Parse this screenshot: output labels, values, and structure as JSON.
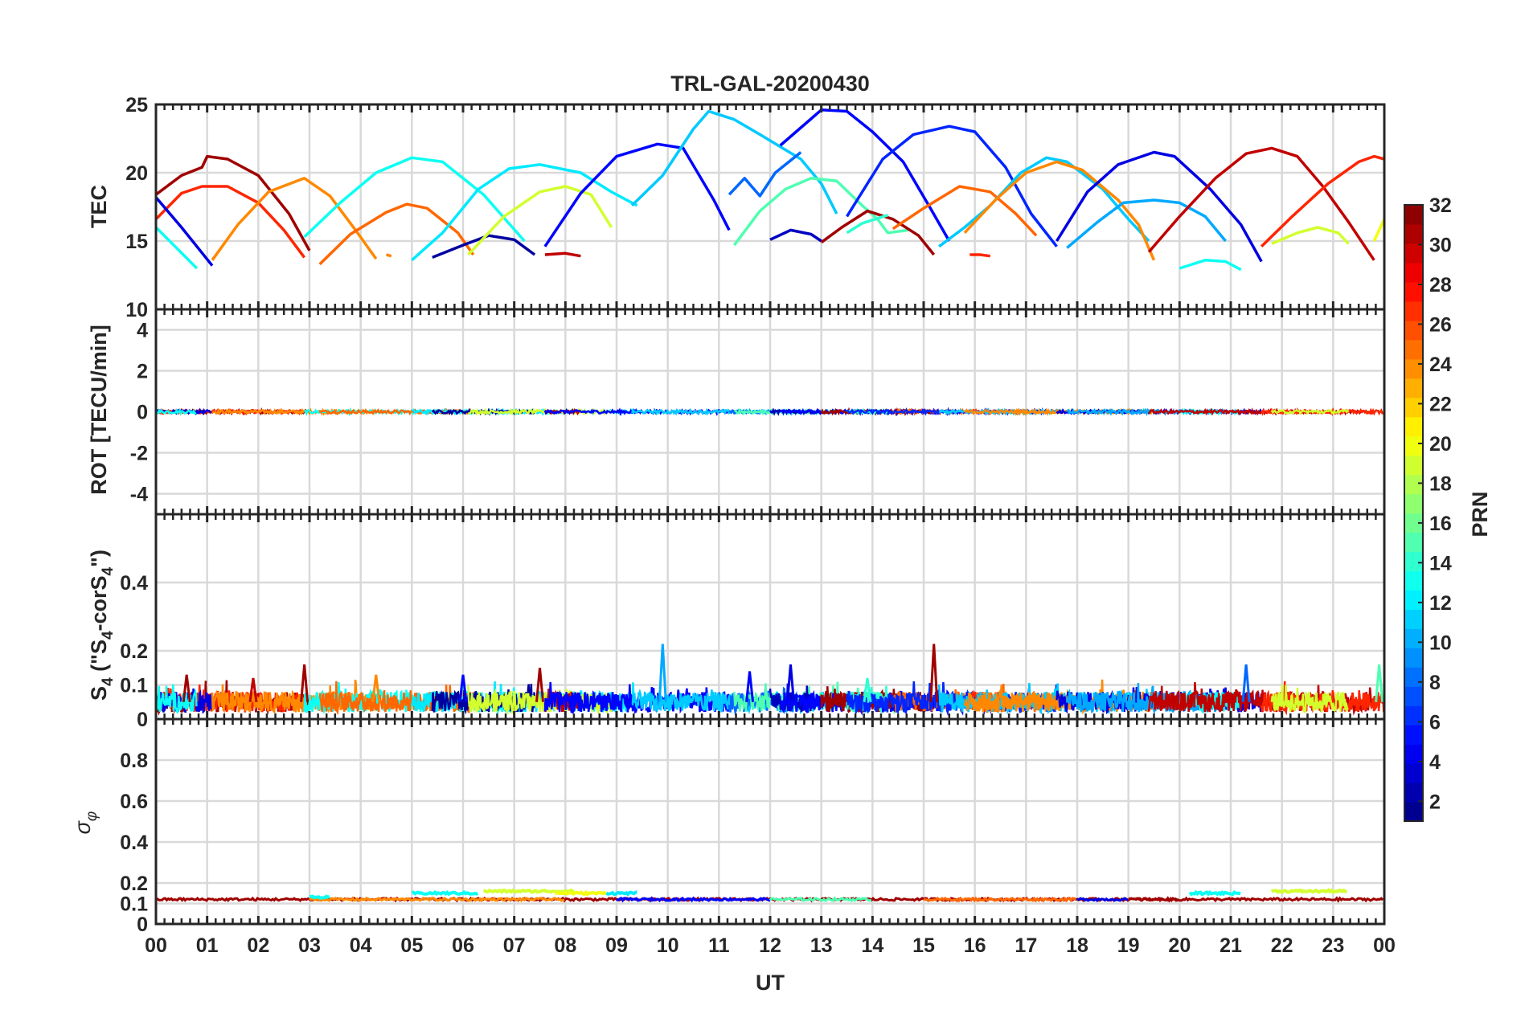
{
  "title": "TRL-GAL-20200430",
  "xlabel": "UT",
  "x_ticks": [
    "00",
    "01",
    "02",
    "03",
    "04",
    "05",
    "06",
    "07",
    "08",
    "09",
    "10",
    "11",
    "12",
    "13",
    "14",
    "15",
    "16",
    "17",
    "18",
    "19",
    "20",
    "21",
    "22",
    "23",
    "00"
  ],
  "colorbar": {
    "label": "PRN",
    "ticks": [
      "2",
      "4",
      "6",
      "8",
      "10",
      "12",
      "14",
      "16",
      "18",
      "20",
      "22",
      "24",
      "26",
      "28",
      "30",
      "32"
    ],
    "range": [
      1,
      32
    ],
    "colormap": "jet"
  },
  "chart_data": [
    {
      "type": "line",
      "name": "TEC panel",
      "ylabel": "TEC",
      "ylim": [
        10,
        25
      ],
      "y_ticks": [
        "10",
        "15",
        "20",
        "25"
      ],
      "x_range_hours": [
        0,
        24
      ],
      "series": [
        {
          "prn": 31,
          "points": [
            [
              0,
              18.4
            ],
            [
              0.5,
              19.8
            ],
            [
              0.9,
              20.4
            ],
            [
              1.0,
              21.2
            ],
            [
              1.4,
              21.0
            ],
            [
              2.0,
              19.8
            ],
            [
              2.6,
              17.0
            ],
            [
              3.0,
              14.3
            ]
          ]
        },
        {
          "prn": 27,
          "points": [
            [
              0,
              16.6
            ],
            [
              0.5,
              18.5
            ],
            [
              0.9,
              19.0
            ],
            [
              1.4,
              19.0
            ],
            [
              2.0,
              17.8
            ],
            [
              2.5,
              15.8
            ],
            [
              2.9,
              13.8
            ]
          ]
        },
        {
          "prn": 4,
          "points": [
            [
              0,
              18.2
            ],
            [
              0.5,
              16.0
            ],
            [
              1.1,
              13.2
            ]
          ]
        },
        {
          "prn": 13,
          "points": [
            [
              0,
              16.0
            ],
            [
              0.4,
              14.5
            ],
            [
              0.8,
              13.0
            ]
          ]
        },
        {
          "prn": 24,
          "points": [
            [
              1.1,
              13.6
            ],
            [
              1.6,
              16.2
            ],
            [
              2.2,
              18.6
            ],
            [
              2.9,
              19.6
            ],
            [
              3.4,
              18.3
            ],
            [
              3.9,
              15.8
            ],
            [
              4.3,
              13.7
            ]
          ]
        },
        {
          "prn": 13,
          "points": [
            [
              2.9,
              15.3
            ],
            [
              3.6,
              17.8
            ],
            [
              4.3,
              20.0
            ],
            [
              5.0,
              21.1
            ],
            [
              5.6,
              20.8
            ],
            [
              6.4,
              18.4
            ],
            [
              7.2,
              15.0
            ]
          ]
        },
        {
          "prn": 25,
          "points": [
            [
              3.2,
              13.3
            ],
            [
              3.8,
              15.5
            ],
            [
              4.5,
              17.1
            ],
            [
              4.9,
              17.7
            ],
            [
              5.3,
              17.4
            ],
            [
              5.9,
              15.6
            ],
            [
              6.2,
              14.0
            ]
          ]
        },
        {
          "prn": 24,
          "points": [
            [
              4.5,
              14.0
            ],
            [
              4.6,
              13.9
            ]
          ]
        },
        {
          "prn": 12,
          "points": [
            [
              5.0,
              13.6
            ],
            [
              5.6,
              15.6
            ],
            [
              6.3,
              18.8
            ],
            [
              6.9,
              20.3
            ],
            [
              7.5,
              20.6
            ],
            [
              8.3,
              20.0
            ],
            [
              8.9,
              18.6
            ],
            [
              9.4,
              17.6
            ]
          ]
        },
        {
          "prn": 2,
          "points": [
            [
              5.4,
              13.8
            ],
            [
              6.0,
              14.7
            ],
            [
              6.5,
              15.4
            ],
            [
              7.0,
              15.1
            ],
            [
              7.4,
              14.0
            ]
          ]
        },
        {
          "prn": 19,
          "points": [
            [
              6.1,
              14.0
            ],
            [
              6.8,
              16.8
            ],
            [
              7.5,
              18.6
            ],
            [
              8.0,
              19.0
            ],
            [
              8.5,
              18.4
            ],
            [
              8.9,
              16.0
            ]
          ]
        },
        {
          "prn": 30,
          "points": [
            [
              7.6,
              14.0
            ],
            [
              8.0,
              14.1
            ],
            [
              8.3,
              13.9
            ]
          ]
        },
        {
          "prn": 5,
          "points": [
            [
              7.6,
              14.6
            ],
            [
              8.3,
              18.5
            ],
            [
              9.0,
              21.2
            ],
            [
              9.8,
              22.1
            ],
            [
              10.3,
              21.8
            ],
            [
              10.9,
              18.0
            ],
            [
              11.2,
              15.8
            ]
          ]
        },
        {
          "prn": 11,
          "points": [
            [
              9.3,
              17.6
            ],
            [
              9.9,
              19.8
            ],
            [
              10.5,
              23.2
            ],
            [
              10.8,
              24.5
            ],
            [
              11.3,
              23.9
            ],
            [
              11.8,
              22.8
            ],
            [
              12.6,
              21.0
            ],
            [
              13.0,
              19.2
            ],
            [
              13.3,
              17.0
            ]
          ]
        },
        {
          "prn": 8,
          "points": [
            [
              11.2,
              18.4
            ],
            [
              11.5,
              19.6
            ],
            [
              11.8,
              18.3
            ],
            [
              12.1,
              20.0
            ],
            [
              12.6,
              21.5
            ]
          ]
        },
        {
          "prn": 15,
          "points": [
            [
              11.3,
              14.7
            ],
            [
              11.8,
              17.2
            ],
            [
              12.3,
              18.8
            ],
            [
              12.8,
              19.6
            ],
            [
              13.3,
              19.4
            ],
            [
              13.8,
              17.6
            ],
            [
              14.1,
              16.6
            ],
            [
              14.3,
              15.6
            ],
            [
              14.7,
              15.8
            ]
          ]
        },
        {
          "prn": 3,
          "points": [
            [
              12.0,
              15.1
            ],
            [
              12.4,
              15.8
            ],
            [
              12.8,
              15.5
            ],
            [
              13.0,
              15.0
            ]
          ]
        },
        {
          "prn": 5,
          "points": [
            [
              12.2,
              22.0
            ],
            [
              13.0,
              24.6
            ],
            [
              13.5,
              24.5
            ],
            [
              14.0,
              23.0
            ],
            [
              14.6,
              20.8
            ],
            [
              15.1,
              17.6
            ],
            [
              15.5,
              15.0
            ]
          ]
        },
        {
          "prn": 31,
          "points": [
            [
              13.0,
              14.9
            ],
            [
              13.4,
              16.0
            ],
            [
              13.9,
              17.2
            ],
            [
              14.4,
              16.6
            ],
            [
              14.9,
              15.4
            ],
            [
              15.2,
              14.0
            ]
          ]
        },
        {
          "prn": 14,
          "points": [
            [
              13.5,
              15.6
            ],
            [
              13.8,
              16.3
            ],
            [
              14.3,
              16.9
            ]
          ]
        },
        {
          "prn": 25,
          "points": [
            [
              14.4,
              15.9
            ],
            [
              15.0,
              17.4
            ],
            [
              15.7,
              19.0
            ],
            [
              16.3,
              18.6
            ],
            [
              16.8,
              17.0
            ],
            [
              17.2,
              15.4
            ]
          ]
        },
        {
          "prn": 6,
          "points": [
            [
              13.5,
              16.8
            ],
            [
              14.2,
              21.0
            ],
            [
              14.8,
              22.8
            ],
            [
              15.5,
              23.4
            ],
            [
              16.0,
              23.0
            ],
            [
              16.6,
              20.4
            ],
            [
              17.1,
              17.0
            ],
            [
              17.6,
              14.6
            ]
          ]
        },
        {
          "prn": 27,
          "points": [
            [
              15.9,
              14.0
            ],
            [
              16.1,
              14.0
            ],
            [
              16.3,
              13.9
            ]
          ]
        },
        {
          "prn": 11,
          "points": [
            [
              15.3,
              14.6
            ],
            [
              15.8,
              16.0
            ],
            [
              16.3,
              17.6
            ],
            [
              16.9,
              20.0
            ],
            [
              17.4,
              21.1
            ],
            [
              17.8,
              20.8
            ],
            [
              18.5,
              18.8
            ],
            [
              19.0,
              16.6
            ],
            [
              19.4,
              15.0
            ]
          ]
        },
        {
          "prn": 24,
          "points": [
            [
              15.8,
              15.6
            ],
            [
              16.4,
              18.0
            ],
            [
              17.0,
              20.0
            ],
            [
              17.6,
              20.8
            ],
            [
              18.1,
              20.2
            ],
            [
              18.8,
              18.0
            ],
            [
              19.2,
              16.2
            ],
            [
              19.5,
              13.6
            ]
          ]
        },
        {
          "prn": 4,
          "points": [
            [
              17.6,
              15.0
            ],
            [
              18.2,
              18.6
            ],
            [
              18.8,
              20.6
            ],
            [
              19.5,
              21.5
            ],
            [
              19.9,
              21.2
            ],
            [
              20.6,
              18.8
            ],
            [
              21.2,
              16.2
            ],
            [
              21.6,
              13.5
            ]
          ]
        },
        {
          "prn": 10,
          "points": [
            [
              17.8,
              14.5
            ],
            [
              18.4,
              16.4
            ],
            [
              18.9,
              17.8
            ],
            [
              19.5,
              18.0
            ],
            [
              20.0,
              17.8
            ],
            [
              20.5,
              16.8
            ],
            [
              20.9,
              15.0
            ]
          ]
        },
        {
          "prn": 13,
          "points": [
            [
              20.0,
              13.0
            ],
            [
              20.5,
              13.6
            ],
            [
              20.9,
              13.5
            ],
            [
              21.2,
              12.9
            ]
          ]
        },
        {
          "prn": 30,
          "points": [
            [
              19.4,
              14.2
            ],
            [
              20.0,
              16.8
            ],
            [
              20.7,
              19.6
            ],
            [
              21.3,
              21.4
            ],
            [
              21.8,
              21.8
            ],
            [
              22.3,
              21.2
            ],
            [
              22.8,
              19.0
            ],
            [
              23.3,
              16.4
            ],
            [
              23.8,
              13.6
            ]
          ]
        },
        {
          "prn": 27,
          "points": [
            [
              21.6,
              14.6
            ],
            [
              22.2,
              16.8
            ],
            [
              22.9,
              19.2
            ],
            [
              23.5,
              20.8
            ],
            [
              23.8,
              21.2
            ],
            [
              24.0,
              21.0
            ]
          ]
        },
        {
          "prn": 19,
          "points": [
            [
              21.8,
              14.8
            ],
            [
              22.3,
              15.6
            ],
            [
              22.7,
              16.0
            ],
            [
              23.1,
              15.6
            ],
            [
              23.3,
              14.8
            ]
          ]
        },
        {
          "prn": 20,
          "points": [
            [
              23.8,
              15.0
            ],
            [
              24.0,
              16.6
            ]
          ]
        }
      ]
    },
    {
      "type": "line",
      "name": "ROT panel",
      "ylabel": "ROT [TECU/min]",
      "ylim": [
        -5,
        5
      ],
      "y_ticks": [
        "-4",
        "-2",
        "0",
        "2",
        "4"
      ],
      "baseline": 0,
      "noise_amplitude": 0.08
    },
    {
      "type": "line",
      "name": "S4 panel",
      "ylabel": "S4 (\"S4-corS4\")",
      "ylim": [
        0,
        0.6
      ],
      "y_ticks": [
        "0",
        "0.1",
        "0.2",
        "0.4"
      ],
      "typical_range": [
        0.02,
        0.08
      ],
      "peaks": [
        {
          "x": 0.6,
          "y": 0.13
        },
        {
          "x": 1.9,
          "y": 0.12
        },
        {
          "x": 2.9,
          "y": 0.16
        },
        {
          "x": 4.3,
          "y": 0.13
        },
        {
          "x": 6.0,
          "y": 0.13
        },
        {
          "x": 7.5,
          "y": 0.15
        },
        {
          "x": 9.9,
          "y": 0.22
        },
        {
          "x": 11.6,
          "y": 0.14
        },
        {
          "x": 12.4,
          "y": 0.16
        },
        {
          "x": 13.9,
          "y": 0.12
        },
        {
          "x": 15.2,
          "y": 0.22
        },
        {
          "x": 21.3,
          "y": 0.16
        },
        {
          "x": 23.9,
          "y": 0.16
        }
      ]
    },
    {
      "type": "line",
      "name": "Sigma phi panel",
      "ylabel": "σφ",
      "ylim": [
        0,
        1
      ],
      "y_ticks": [
        "0",
        "0.1",
        "0.2",
        "0.4",
        "0.6",
        "0.8"
      ],
      "baseline": 0.12,
      "segments": [
        {
          "prn": 13,
          "x": [
            3.0,
            3.4
          ],
          "y": 0.13
        },
        {
          "prn": 13,
          "x": [
            5.0,
            6.3
          ],
          "y": 0.15
        },
        {
          "prn": 19,
          "x": [
            6.4,
            8.2
          ],
          "y": 0.16
        },
        {
          "prn": 20,
          "x": [
            7.8,
            8.8
          ],
          "y": 0.15
        },
        {
          "prn": 12,
          "x": [
            8.8,
            9.4
          ],
          "y": 0.15
        },
        {
          "prn": 13,
          "x": [
            20.2,
            21.2
          ],
          "y": 0.15
        },
        {
          "prn": 19,
          "x": [
            21.8,
            23.3
          ],
          "y": 0.16
        }
      ]
    }
  ]
}
